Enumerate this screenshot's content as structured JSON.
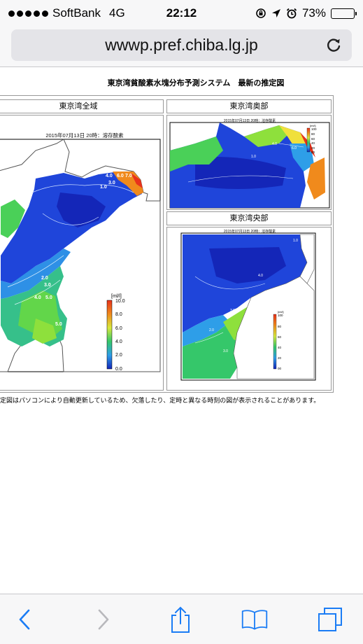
{
  "status_bar": {
    "carrier": "SoftBank",
    "network": "4G",
    "time": "22:12",
    "battery_percent": "73%",
    "battery_level": 0.73
  },
  "address_bar": {
    "url": "wwwp.pref.chiba.lg.jp"
  },
  "page": {
    "title": "東京湾貧酸素水塊分布予測システム　最新の推定図",
    "panels": {
      "whole": {
        "header": "東京湾全域",
        "map_title": "2015年07月13日 20時：溶存酸素"
      },
      "inner": {
        "header": "東京湾奥部",
        "map_title": "2015年07月13日 20時：溶存酸素"
      },
      "central": {
        "header": "東京湾央部",
        "map_title": "2015年07月13日 20時：溶存酸素"
      }
    },
    "legend": {
      "unit": "[ml/l]",
      "ticks": [
        "10.0",
        "8.0",
        "6.0",
        "4.0",
        "2.0",
        "0.0"
      ],
      "small_ticks": [
        "100",
        "80",
        "60",
        "40",
        "20",
        "00"
      ]
    },
    "contour_labels": {
      "whole": [
        "4.0",
        "6.0",
        "7.0",
        "1.0",
        "3.0",
        "1.0",
        "5.0",
        "2.0",
        "3.0",
        "4.0",
        "5.0",
        "5.0",
        "1.0"
      ],
      "inner": [
        "4.0",
        "1.0",
        "6.0"
      ],
      "central": [
        "1.0",
        "4.0",
        "3.0",
        "2.0",
        "3.0"
      ]
    },
    "note": "定図はパソコンにより自動更新しているため、欠落したり、定時と異なる時刻の図が表示されることがあります。"
  },
  "colors": {
    "hypoxic": "#1a3fd8",
    "low": "#2e9ee8",
    "mid": "#35c76a",
    "high": "#8ee03c",
    "very_high": "#f08a1c",
    "max": "#e8321c"
  }
}
